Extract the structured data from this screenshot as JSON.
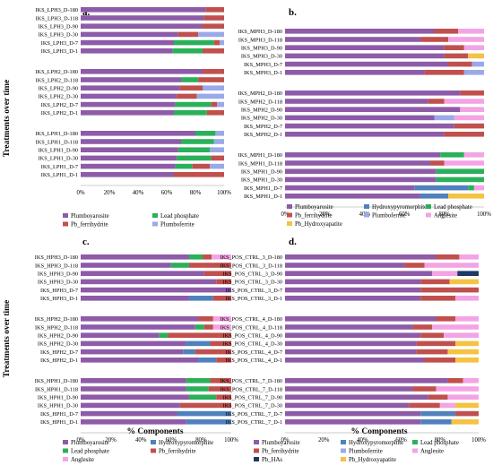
{
  "figure": {
    "y_axis_title": "Treatments over time",
    "x_axis_title": "% Components",
    "x_ticks": [
      "0%",
      "20%",
      "40%",
      "60%",
      "80%",
      "100%"
    ]
  },
  "colors": {
    "Plumboyarosite": "#8e5ba8",
    "Lead phosphate": "#2bb05a",
    "Pb_ferrihydrite": "#c0504d",
    "Plumboferrite": "#9aa9e8",
    "Hydroxypyromorphite": "#4f81bd",
    "Anglesite": "#f3a4e5",
    "Pb_Hydroxyapatite": "#f5c242",
    "Pb_HAs": "#1f3864"
  },
  "chart_data": [
    {
      "panel": "a.",
      "type": "bar",
      "orientation": "horizontal",
      "stacked": true,
      "xlim": [
        0,
        100
      ],
      "components": [
        "Plumboyarosite",
        "Lead phosphate",
        "Pb_ferrihydrite",
        "Plumboferrite"
      ],
      "legend": [
        "Plumboyarosite",
        "Lead phosphate",
        "Pb_ferrihydrite",
        "Plumboferrite"
      ],
      "groups": [
        {
          "rows": [
            {
              "label": "IKS_LPH3_D-180",
              "values": [
                87,
                0,
                13,
                0
              ]
            },
            {
              "label": "IKS_LPH3_D-118",
              "values": [
                86,
                0,
                14,
                0
              ]
            },
            {
              "label": "IKS_LPH3_D-90",
              "values": [
                85,
                0,
                15,
                0
              ]
            },
            {
              "label": "IKS_LPH3_D-30",
              "values": [
                68,
                0,
                14,
                18
              ]
            },
            {
              "label": "IKS_LPH3_D-7",
              "values": [
                65,
                28,
                4,
                3
              ]
            },
            {
              "label": "IKS_LPH3_D-1",
              "values": [
                64,
                21,
                15,
                0
              ]
            }
          ]
        },
        {
          "rows": [
            {
              "label": "IKS_LPH2_D-180",
              "values": [
                85,
                0,
                15,
                0
              ]
            },
            {
              "label": "IKS_LPH2_D-118",
              "values": [
                70,
                12,
                18,
                0
              ]
            },
            {
              "label": "IKS_LPH2_D-90",
              "values": [
                69,
                0,
                16,
                15
              ]
            },
            {
              "label": "IKS_LPH2_D-30",
              "values": [
                67,
                0,
                14,
                19
              ]
            },
            {
              "label": "IKS_LPH2_D-7",
              "values": [
                66,
                25,
                4,
                5
              ]
            },
            {
              "label": "IKS_LPH2_D-1",
              "values": [
                65,
                23,
                12,
                0
              ]
            }
          ]
        },
        {
          "rows": [
            {
              "label": "IKS_LPH1_D-180",
              "values": [
                80,
                14,
                0,
                6
              ]
            },
            {
              "label": "IKS_LPH1_D-118",
              "values": [
                70,
                23,
                0,
                7
              ]
            },
            {
              "label": "IKS_LPH1_D-90",
              "values": [
                68,
                22,
                0,
                10
              ]
            },
            {
              "label": "IKS_LPH1_D-30",
              "values": [
                67,
                24,
                9,
                0
              ]
            },
            {
              "label": "IKS_LPH1_D-7",
              "values": [
                66,
                12,
                12,
                10
              ]
            },
            {
              "label": "IKS_LPH1_D-1",
              "values": [
                65,
                0,
                35,
                0
              ]
            }
          ]
        }
      ]
    },
    {
      "panel": "b.",
      "type": "bar",
      "orientation": "horizontal",
      "stacked": true,
      "xlim": [
        0,
        100
      ],
      "components": [
        "Plumboyarosite",
        "Hydroxypyromorphite",
        "Lead phosphate",
        "Pb_ferrihydrite",
        "Plumboferrite",
        "Anglesite",
        "Pb_Hydroxyapatite"
      ],
      "legend": [
        "Plumboyarosite",
        "Hydroxypyromorphite",
        "Lead phosphate",
        "Pb_ferrihydrite",
        "Plumboferrite",
        "Anglesite",
        "Pb_Hydroxyapatite"
      ],
      "groups": [
        {
          "rows": [
            {
              "label": "IKS_MPH3_D-180",
              "values": [
                75,
                0,
                0,
                12,
                0,
                13,
                0
              ]
            },
            {
              "label": "IKS_MPH3_D-118",
              "values": [
                68,
                0,
                0,
                14,
                0,
                18,
                0
              ]
            },
            {
              "label": "IKS_MPH3_D-90",
              "values": [
                80,
                0,
                0,
                10,
                0,
                10,
                0
              ]
            },
            {
              "label": "IKS_MPH3_D-30",
              "values": [
                80,
                0,
                0,
                12,
                0,
                0,
                8
              ]
            },
            {
              "label": "IKS_MPH3_D-7",
              "values": [
                82,
                0,
                0,
                12,
                6,
                0,
                0
              ]
            },
            {
              "label": "IKS_MPH3_D-1",
              "values": [
                70,
                0,
                0,
                20,
                10,
                0,
                0
              ]
            }
          ]
        },
        {
          "rows": [
            {
              "label": "IKS_MPH2_D-180",
              "values": [
                88,
                0,
                0,
                12,
                0,
                0,
                0
              ]
            },
            {
              "label": "IKS_MPH2_D-118",
              "values": [
                72,
                0,
                0,
                8,
                0,
                20,
                0
              ]
            },
            {
              "label": "IKS_MPH2_D-90",
              "values": [
                88,
                0,
                0,
                0,
                0,
                12,
                0
              ]
            },
            {
              "label": "IKS_MPH2_D-30",
              "values": [
                75,
                0,
                0,
                0,
                10,
                15,
                0
              ]
            },
            {
              "label": "IKS_MPH2_D-7",
              "values": [
                85,
                0,
                0,
                15,
                0,
                0,
                0
              ]
            },
            {
              "label": "IKS_MPH2_D-1",
              "values": [
                80,
                0,
                0,
                20,
                0,
                0,
                0
              ]
            }
          ]
        },
        {
          "rows": [
            {
              "label": "IKS_MPH1_D-180",
              "values": [
                78,
                0,
                12,
                0,
                0,
                10,
                0
              ]
            },
            {
              "label": "IKS_MPH1_D-118",
              "values": [
                73,
                0,
                0,
                7,
                0,
                20,
                0
              ]
            },
            {
              "label": "IKS_MPH1_D-90",
              "values": [
                76,
                0,
                24,
                0,
                0,
                0,
                0
              ]
            },
            {
              "label": "IKS_MPH1_D-30",
              "values": [
                76,
                0,
                24,
                0,
                0,
                0,
                0
              ]
            },
            {
              "label": "IKS_MPH1_D-7",
              "values": [
                65,
                27,
                3,
                0,
                0,
                5,
                0
              ]
            },
            {
              "label": "IKS_MPH1_D-1",
              "values": [
                68,
                14,
                0,
                0,
                0,
                0,
                18
              ]
            }
          ]
        }
      ]
    },
    {
      "panel": "c.",
      "type": "bar",
      "orientation": "horizontal",
      "stacked": true,
      "xlim": [
        0,
        100
      ],
      "components": [
        "Plumboyarosite",
        "Hydroxypyromorphite",
        "Lead phosphate",
        "Pb_ferrihydrite",
        "Anglesite"
      ],
      "legend": [
        "Plumboyarosite",
        "Hydroxypyromorphite",
        "Lead phosphate",
        "Pb_ferrihydrite",
        "Anglesite"
      ],
      "groups": [
        {
          "rows": [
            {
              "label": "IKS_HPH3_D-180",
              "values": [
                72,
                0,
                9,
                6,
                13
              ]
            },
            {
              "label": "IKS_HPH3_D-118",
              "values": [
                60,
                0,
                12,
                28,
                0
              ]
            },
            {
              "label": "IKS_HPH3_D-90",
              "values": [
                82,
                0,
                0,
                18,
                0
              ]
            },
            {
              "label": "IKS_HPH3_D-30",
              "values": [
                90,
                0,
                0,
                10,
                0
              ]
            },
            {
              "label": "IKS_HPH3_D-7",
              "values": [
                100,
                0,
                0,
                0,
                0
              ]
            },
            {
              "label": "IKS_HPH3_D-1",
              "values": [
                72,
                16,
                0,
                12,
                0
              ]
            }
          ]
        },
        {
          "rows": [
            {
              "label": "IKS_HPH2_D-180",
              "values": [
                78,
                0,
                0,
                10,
                12
              ]
            },
            {
              "label": "IKS_HPH2_D-118",
              "values": [
                76,
                0,
                6,
                6,
                12
              ]
            },
            {
              "label": "IKS_HPH2_D-90",
              "values": [
                52,
                0,
                6,
                42,
                0
              ]
            },
            {
              "label": "IKS_HPH2_D-30",
              "values": [
                70,
                16,
                0,
                14,
                0
              ]
            },
            {
              "label": "IKS_HPH2_D-7",
              "values": [
                68,
                8,
                0,
                24,
                0
              ]
            },
            {
              "label": "IKS_HPH2_D-1",
              "values": [
                78,
                12,
                0,
                10,
                0
              ]
            }
          ]
        },
        {
          "rows": [
            {
              "label": "IKS_HPH1_D-180",
              "values": [
                70,
                0,
                16,
                14,
                0
              ]
            },
            {
              "label": "IKS_HPH1_D-118",
              "values": [
                70,
                0,
                15,
                15,
                0
              ]
            },
            {
              "label": "IKS_HPH1_D-90",
              "values": [
                72,
                0,
                18,
                10,
                0
              ]
            },
            {
              "label": "IKS_HPH1_D-30",
              "values": [
                66,
                0,
                0,
                34,
                0
              ]
            },
            {
              "label": "IKS_HPH1_D-7",
              "values": [
                64,
                36,
                0,
                0,
                0
              ]
            },
            {
              "label": "IKS_HPH1_D-1",
              "values": [
                70,
                30,
                0,
                0,
                0
              ]
            }
          ]
        }
      ]
    },
    {
      "panel": "d.",
      "type": "bar",
      "orientation": "horizontal",
      "stacked": true,
      "xlim": [
        0,
        100
      ],
      "components": [
        "Plumboyarosite",
        "Hydroxypyromorphite",
        "Lead phosphate",
        "Pb_ferrihydrite",
        "Plumboferrite",
        "Anglesite",
        "Pb_HAs",
        "Pb_Hydroxyapatite"
      ],
      "legend": [
        "Plumboyarosite",
        "Hydroxypyromorphite",
        "Lead phosphate",
        "Pb_ferrihydrite",
        "Plumboferrite",
        "Anglesite",
        "Pb_HAs",
        "Pb_Hydroxyapatite"
      ],
      "groups": [
        {
          "rows": [
            {
              "label": "IKS_POS_CTRL_3_D-180",
              "values": [
                78,
                0,
                0,
                12,
                0,
                10,
                0,
                0
              ]
            },
            {
              "label": "IKS_POS_CTRL_3_D-118",
              "values": [
                62,
                0,
                0,
                10,
                0,
                28,
                0,
                0
              ]
            },
            {
              "label": "IKS_POS_CTRL_3_D-90",
              "values": [
                76,
                0,
                0,
                0,
                0,
                13,
                11,
                0
              ]
            },
            {
              "label": "IKS_POS_CTRL_3_D-30",
              "values": [
                70,
                0,
                0,
                15,
                0,
                0,
                0,
                15
              ]
            },
            {
              "label": "IKS_POS_CTRL_3_D-7",
              "values": [
                70,
                0,
                0,
                30,
                0,
                0,
                0,
                0
              ]
            },
            {
              "label": "IKS_POS_CTRL_3_D-1",
              "values": [
                70,
                0,
                0,
                18,
                0,
                12,
                0,
                0
              ]
            }
          ]
        },
        {
          "rows": [
            {
              "label": "IKS_POS_CTRL_4_D-180",
              "values": [
                78,
                0,
                0,
                10,
                0,
                12,
                0,
                0
              ]
            },
            {
              "label": "IKS_POS_CTRL_4_D-118",
              "values": [
                66,
                0,
                0,
                10,
                0,
                24,
                0,
                0
              ]
            },
            {
              "label": "IKS_POS_CTRL_4_D-90",
              "values": [
                70,
                0,
                0,
                12,
                0,
                18,
                0,
                0
              ]
            },
            {
              "label": "IKS_POS_CTRL_4_D-30",
              "values": [
                68,
                0,
                0,
                20,
                0,
                0,
                0,
                12
              ]
            },
            {
              "label": "IKS_POS_CTRL_4_D-7",
              "values": [
                68,
                0,
                0,
                16,
                0,
                0,
                0,
                16
              ]
            },
            {
              "label": "IKS_POS_CTRL_4_D-1",
              "values": [
                72,
                0,
                0,
                16,
                0,
                0,
                0,
                12
              ]
            }
          ]
        },
        {
          "rows": [
            {
              "label": "IKS_POS_CTRL_7_D-180",
              "values": [
                84,
                0,
                0,
                8,
                0,
                8,
                0,
                0
              ]
            },
            {
              "label": "IKS_POS_CTRL_7_D-118",
              "values": [
                66,
                0,
                0,
                12,
                0,
                22,
                0,
                0
              ]
            },
            {
              "label": "IKS_POS_CTRL_7_D-90",
              "values": [
                74,
                0,
                0,
                10,
                0,
                16,
                0,
                0
              ]
            },
            {
              "label": "IKS_POS_CTRL_7_D-30",
              "values": [
                64,
                0,
                0,
                16,
                0,
                8,
                0,
                12
              ]
            },
            {
              "label": "IKS_POS_CTRL_7_D-7",
              "values": [
                70,
                18,
                0,
                12,
                0,
                0,
                0,
                0
              ]
            },
            {
              "label": "IKS_POS_CTRL_7_D-1",
              "values": [
                70,
                16,
                0,
                0,
                0,
                0,
                0,
                14
              ]
            }
          ]
        }
      ]
    }
  ]
}
